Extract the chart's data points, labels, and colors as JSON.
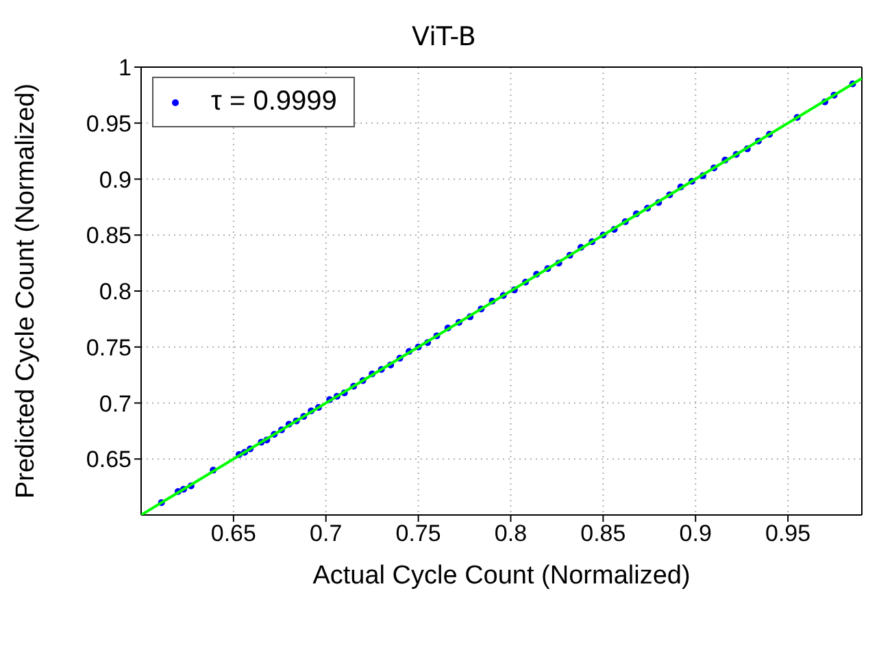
{
  "chart_data": {
    "type": "scatter",
    "title": "ViT-B",
    "xlabel": "Actual Cycle Count (Normalized)",
    "ylabel": "Predicted Cycle Count (Normalized)",
    "xlim": [
      0.6,
      0.99
    ],
    "ylim": [
      0.6,
      1
    ],
    "xticks": [
      0.65,
      0.7,
      0.75,
      0.8,
      0.85,
      0.9,
      0.95
    ],
    "yticks": [
      0.65,
      0.7,
      0.75,
      0.8,
      0.85,
      0.9,
      0.95,
      1
    ],
    "grid": true,
    "legend": "top left",
    "marker": "circle",
    "series": [
      {
        "name": "τ = 0.9999",
        "color": "#0000ff",
        "x": [
          0.611,
          0.62,
          0.623,
          0.627,
          0.639,
          0.653,
          0.656,
          0.659,
          0.665,
          0.668,
          0.672,
          0.676,
          0.68,
          0.684,
          0.688,
          0.692,
          0.696,
          0.702,
          0.706,
          0.71,
          0.715,
          0.72,
          0.725,
          0.73,
          0.735,
          0.74,
          0.745,
          0.75,
          0.755,
          0.76,
          0.766,
          0.772,
          0.778,
          0.784,
          0.79,
          0.796,
          0.802,
          0.808,
          0.814,
          0.82,
          0.826,
          0.832,
          0.838,
          0.844,
          0.85,
          0.856,
          0.862,
          0.868,
          0.874,
          0.88,
          0.886,
          0.892,
          0.898,
          0.904,
          0.91,
          0.916,
          0.922,
          0.928,
          0.934,
          0.94,
          0.955,
          0.97,
          0.975,
          0.985
        ],
        "values": [
          0.611,
          0.621,
          0.623,
          0.626,
          0.64,
          0.654,
          0.656,
          0.659,
          0.665,
          0.667,
          0.672,
          0.676,
          0.681,
          0.684,
          0.688,
          0.693,
          0.696,
          0.703,
          0.706,
          0.709,
          0.715,
          0.72,
          0.726,
          0.73,
          0.734,
          0.74,
          0.746,
          0.75,
          0.754,
          0.76,
          0.767,
          0.772,
          0.777,
          0.784,
          0.791,
          0.796,
          0.801,
          0.808,
          0.815,
          0.82,
          0.825,
          0.832,
          0.839,
          0.844,
          0.85,
          0.855,
          0.862,
          0.869,
          0.874,
          0.879,
          0.886,
          0.893,
          0.898,
          0.903,
          0.91,
          0.917,
          0.922,
          0.927,
          0.934,
          0.94,
          0.955,
          0.969,
          0.975,
          0.985
        ]
      },
      {
        "type": "line",
        "marker": "none",
        "color": "#00ff00",
        "x": [
          0.6,
          0.99
        ],
        "values": [
          0.6,
          0.99
        ]
      }
    ]
  }
}
